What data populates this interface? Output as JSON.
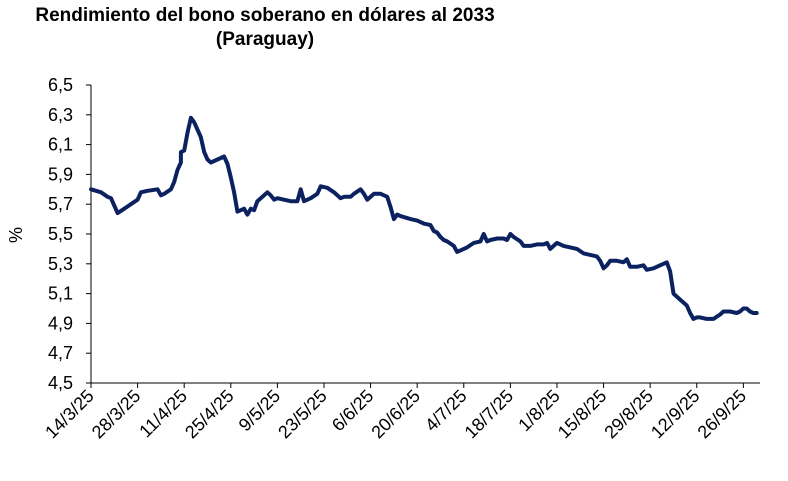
{
  "chart_data": {
    "type": "line",
    "title": "Rendimiento del bono soberano en dólares al 2033",
    "subtitle": "(Paraguay)",
    "ylabel": "%",
    "xlabel": "",
    "ylim": [
      4.5,
      6.5
    ],
    "y_ticks": [
      "6,5",
      "6,3",
      "6,1",
      "5,9",
      "5,7",
      "5,5",
      "5,3",
      "5,1",
      "4,9",
      "4,7",
      "4,5"
    ],
    "x_tick_labels": [
      "14/3/25",
      "28/3/25",
      "11/4/25",
      "25/4/25",
      "9/5/25",
      "23/5/25",
      "6/6/25",
      "20/6/25",
      "4/7/25",
      "18/7/25",
      "1/8/25",
      "15/8/25",
      "29/8/25",
      "12/9/25",
      "26/9/25"
    ],
    "x_range": [
      "2025-03-14",
      "2025-10-01"
    ],
    "line_color": "#0c2260",
    "grid": false,
    "series": [
      {
        "name": "",
        "points": [
          [
            "2025-03-14",
            5.8
          ],
          [
            "2025-03-17",
            5.78
          ],
          [
            "2025-03-19",
            5.75
          ],
          [
            "2025-03-20",
            5.74
          ],
          [
            "2025-03-21",
            5.69
          ],
          [
            "2025-03-22",
            5.64
          ],
          [
            "2025-03-24",
            5.67
          ],
          [
            "2025-03-26",
            5.7
          ],
          [
            "2025-03-28",
            5.73
          ],
          [
            "2025-03-29",
            5.78
          ],
          [
            "2025-03-31",
            5.79
          ],
          [
            "2025-04-03",
            5.8
          ],
          [
            "2025-04-04",
            5.76
          ],
          [
            "2025-04-05",
            5.77
          ],
          [
            "2025-04-07",
            5.8
          ],
          [
            "2025-04-08",
            5.85
          ],
          [
            "2025-04-09",
            5.93
          ],
          [
            "2025-04-10",
            5.98
          ],
          [
            "2025-04-10",
            6.05
          ],
          [
            "2025-04-11",
            6.06
          ],
          [
            "2025-04-12",
            6.18
          ],
          [
            "2025-04-13",
            6.28
          ],
          [
            "2025-04-14",
            6.25
          ],
          [
            "2025-04-15",
            6.2
          ],
          [
            "2025-04-16",
            6.15
          ],
          [
            "2025-04-17",
            6.05
          ],
          [
            "2025-04-18",
            6.0
          ],
          [
            "2025-04-19",
            5.98
          ],
          [
            "2025-04-21",
            6.0
          ],
          [
            "2025-04-23",
            6.02
          ],
          [
            "2025-04-24",
            5.97
          ],
          [
            "2025-04-25",
            5.88
          ],
          [
            "2025-04-26",
            5.78
          ],
          [
            "2025-04-27",
            5.65
          ],
          [
            "2025-04-28",
            5.66
          ],
          [
            "2025-04-29",
            5.67
          ],
          [
            "2025-04-30",
            5.63
          ],
          [
            "2025-05-01",
            5.67
          ],
          [
            "2025-05-02",
            5.66
          ],
          [
            "2025-05-03",
            5.72
          ],
          [
            "2025-05-05",
            5.76
          ],
          [
            "2025-05-06",
            5.78
          ],
          [
            "2025-05-07",
            5.76
          ],
          [
            "2025-05-08",
            5.73
          ],
          [
            "2025-05-09",
            5.74
          ],
          [
            "2025-05-11",
            5.73
          ],
          [
            "2025-05-13",
            5.72
          ],
          [
            "2025-05-15",
            5.72
          ],
          [
            "2025-05-16",
            5.8
          ],
          [
            "2025-05-17",
            5.72
          ],
          [
            "2025-05-19",
            5.74
          ],
          [
            "2025-05-21",
            5.77
          ],
          [
            "2025-05-22",
            5.82
          ],
          [
            "2025-05-24",
            5.81
          ],
          [
            "2025-05-26",
            5.78
          ],
          [
            "2025-05-28",
            5.74
          ],
          [
            "2025-05-29",
            5.75
          ],
          [
            "2025-05-31",
            5.75
          ],
          [
            "2025-06-01",
            5.77
          ],
          [
            "2025-06-03",
            5.8
          ],
          [
            "2025-06-04",
            5.77
          ],
          [
            "2025-06-05",
            5.73
          ],
          [
            "2025-06-06",
            5.75
          ],
          [
            "2025-06-07",
            5.77
          ],
          [
            "2025-06-09",
            5.77
          ],
          [
            "2025-06-11",
            5.75
          ],
          [
            "2025-06-12",
            5.68
          ],
          [
            "2025-06-13",
            5.6
          ],
          [
            "2025-06-14",
            5.63
          ],
          [
            "2025-06-15",
            5.62
          ],
          [
            "2025-06-18",
            5.6
          ],
          [
            "2025-06-20",
            5.59
          ],
          [
            "2025-06-22",
            5.57
          ],
          [
            "2025-06-24",
            5.56
          ],
          [
            "2025-06-25",
            5.52
          ],
          [
            "2025-06-26",
            5.51
          ],
          [
            "2025-06-27",
            5.48
          ],
          [
            "2025-06-28",
            5.46
          ],
          [
            "2025-06-29",
            5.45
          ],
          [
            "2025-07-01",
            5.42
          ],
          [
            "2025-07-02",
            5.38
          ],
          [
            "2025-07-03",
            5.39
          ],
          [
            "2025-07-05",
            5.41
          ],
          [
            "2025-07-07",
            5.44
          ],
          [
            "2025-07-09",
            5.45
          ],
          [
            "2025-07-10",
            5.5
          ],
          [
            "2025-07-11",
            5.45
          ],
          [
            "2025-07-12",
            5.46
          ],
          [
            "2025-07-14",
            5.47
          ],
          [
            "2025-07-16",
            5.47
          ],
          [
            "2025-07-17",
            5.46
          ],
          [
            "2025-07-18",
            5.5
          ],
          [
            "2025-07-19",
            5.48
          ],
          [
            "2025-07-21",
            5.45
          ],
          [
            "2025-07-22",
            5.42
          ],
          [
            "2025-07-24",
            5.42
          ],
          [
            "2025-07-26",
            5.43
          ],
          [
            "2025-07-28",
            5.43
          ],
          [
            "2025-07-29",
            5.44
          ],
          [
            "2025-07-30",
            5.4
          ],
          [
            "2025-07-31",
            5.42
          ],
          [
            "2025-08-01",
            5.44
          ],
          [
            "2025-08-03",
            5.42
          ],
          [
            "2025-08-05",
            5.41
          ],
          [
            "2025-08-07",
            5.4
          ],
          [
            "2025-08-09",
            5.37
          ],
          [
            "2025-08-11",
            5.36
          ],
          [
            "2025-08-13",
            5.35
          ],
          [
            "2025-08-14",
            5.32
          ],
          [
            "2025-08-15",
            5.27
          ],
          [
            "2025-08-16",
            5.29
          ],
          [
            "2025-08-17",
            5.32
          ],
          [
            "2025-08-19",
            5.32
          ],
          [
            "2025-08-21",
            5.31
          ],
          [
            "2025-08-22",
            5.33
          ],
          [
            "2025-08-23",
            5.28
          ],
          [
            "2025-08-25",
            5.28
          ],
          [
            "2025-08-27",
            5.29
          ],
          [
            "2025-08-28",
            5.26
          ],
          [
            "2025-08-30",
            5.27
          ],
          [
            "2025-09-01",
            5.29
          ],
          [
            "2025-09-03",
            5.31
          ],
          [
            "2025-09-04",
            5.25
          ],
          [
            "2025-09-05",
            5.1
          ],
          [
            "2025-09-07",
            5.06
          ],
          [
            "2025-09-08",
            5.04
          ],
          [
            "2025-09-09",
            5.02
          ],
          [
            "2025-09-10",
            4.97
          ],
          [
            "2025-09-11",
            4.93
          ],
          [
            "2025-09-12",
            4.94
          ],
          [
            "2025-09-13",
            4.94
          ],
          [
            "2025-09-15",
            4.93
          ],
          [
            "2025-09-17",
            4.93
          ],
          [
            "2025-09-19",
            4.96
          ],
          [
            "2025-09-20",
            4.98
          ],
          [
            "2025-09-22",
            4.98
          ],
          [
            "2025-09-24",
            4.97
          ],
          [
            "2025-09-25",
            4.98
          ],
          [
            "2025-09-26",
            5.0
          ],
          [
            "2025-09-27",
            5.0
          ],
          [
            "2025-09-28",
            4.98
          ],
          [
            "2025-09-29",
            4.97
          ],
          [
            "2025-09-30",
            4.97
          ]
        ]
      }
    ]
  }
}
